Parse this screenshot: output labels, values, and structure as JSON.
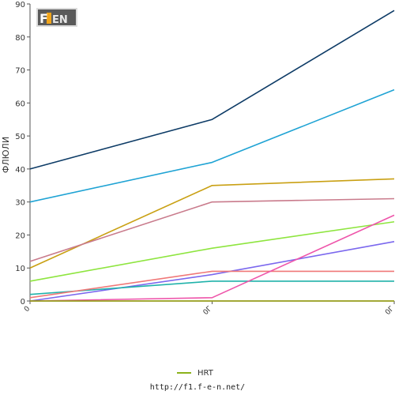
{
  "logo_text": "F1EN",
  "chart_data": {
    "type": "line",
    "title": "",
    "xlabel": "",
    "ylabel": "ФЛЮЛИ",
    "ylim": [
      0,
      90
    ],
    "yticks": [
      0,
      10,
      20,
      30,
      40,
      50,
      60,
      70,
      80,
      90
    ],
    "categories": [
      "0",
      "0Г",
      "0Г"
    ],
    "grid": false,
    "legend_position": "bottom",
    "series": [
      {
        "values": [
          40,
          55,
          88
        ],
        "color": "#0d3b66"
      },
      {
        "values": [
          30,
          42,
          64
        ],
        "color": "#1fa3d4"
      },
      {
        "values": [
          10,
          35,
          37
        ],
        "color": "#c9a013"
      },
      {
        "values": [
          12,
          30,
          31
        ],
        "color": "#c97b8c"
      },
      {
        "values": [
          6,
          16,
          24
        ],
        "color": "#8ee53f"
      },
      {
        "values": [
          0,
          8,
          18
        ],
        "color": "#7b68ee"
      },
      {
        "values": [
          2,
          6,
          6
        ],
        "color": "#20b2aa"
      },
      {
        "values": [
          1,
          9,
          9
        ],
        "color": "#f07878"
      },
      {
        "values": [
          0,
          1,
          26
        ],
        "color": "#ee55aa"
      },
      {
        "values": [
          0,
          0,
          0
        ],
        "color": "#d62020"
      },
      {
        "name": "HRT",
        "values": [
          0,
          0,
          0
        ],
        "color": "#8bb21b"
      }
    ]
  },
  "legend": {
    "items": [
      {
        "label": "HRT",
        "color": "#8bb21b"
      }
    ]
  },
  "footer": {
    "url": "http://f1.f-e-n.net/"
  }
}
